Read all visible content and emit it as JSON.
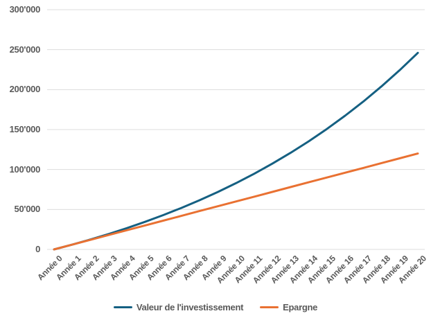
{
  "chart_data": {
    "type": "line",
    "title": "",
    "xlabel": "",
    "ylabel": "",
    "categories": [
      "Année 0",
      "Année 1",
      "Année 2",
      "Année 3",
      "Année 4",
      "Année 5",
      "Année 6",
      "Année 7",
      "Année 8",
      "Année 9",
      "Année 10",
      "Année 11",
      "Année 12",
      "Année 13",
      "Année 14",
      "Année 15",
      "Année 16",
      "Année 17",
      "Année 18",
      "Année 19",
      "Année 20"
    ],
    "series": [
      {
        "name": "Valeur de l'investissement",
        "color": "#156082",
        "values": [
          0,
          6000,
          12420,
          19289,
          26640,
          34504,
          42920,
          51924,
          61559,
          71868,
          82899,
          94702,
          107331,
          120844,
          135303,
          150774,
          167328,
          185041,
          203994,
          224274,
          245973
        ]
      },
      {
        "name": "Epargne",
        "color": "#E97132",
        "values": [
          0,
          6000,
          12000,
          18000,
          24000,
          30000,
          36000,
          42000,
          48000,
          54000,
          60000,
          66000,
          72000,
          78000,
          84000,
          90000,
          96000,
          102000,
          108000,
          114000,
          120000
        ]
      }
    ],
    "ylim": [
      0,
      300000
    ],
    "ytick_step": 50000,
    "ytick_labels": [
      "0",
      "50'000",
      "100'000",
      "150'000",
      "200'000",
      "250'000",
      "300'000"
    ],
    "grid": "horizontal-only",
    "gridline_color": "#DCDCDC",
    "axis_label_color": "#595959",
    "legend_position": "bottom-center",
    "background_color": "#FFFFFF"
  }
}
